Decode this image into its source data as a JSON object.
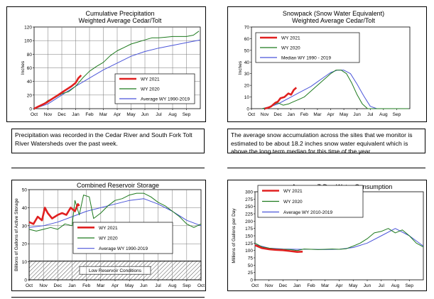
{
  "notes": {
    "precip": "Precipitation was recorded in the Cedar River and South Fork Tolt River Watersheds over the past week.",
    "snow": "The average snow accumulation across the sites that we monitor is estimated to be about 18.2 inches snow water equivalent which is above the long term median for this time of the year."
  },
  "colors": {
    "wy2021": "#e02020",
    "wy2020": "#1e7a1e",
    "avg": "#4b55d9",
    "grid": "#777777"
  },
  "chart_data": [
    {
      "id": "precip",
      "type": "line",
      "title": "Cumulative Precipitation",
      "subtitle": "Weighted Average Cedar/Tolt",
      "ylabel": "Inches",
      "xlabel": "",
      "categories": [
        "Oct",
        "Nov",
        "Dec",
        "Jan",
        "Feb",
        "Mar",
        "Apr",
        "May",
        "Jun",
        "Jul",
        "Aug",
        "Sep"
      ],
      "ylim": [
        0,
        120
      ],
      "yticks": [
        0,
        20,
        40,
        60,
        80,
        100,
        120
      ],
      "grid": true,
      "legend_position": "bottom-right",
      "series": [
        {
          "name": "WY 2021",
          "key": "wy2021",
          "x": [
            0,
            0.3,
            0.6,
            0.9,
            1.2,
            1.5,
            1.8,
            2.1,
            2.4,
            2.7,
            3.0,
            3.2,
            3.4
          ],
          "y": [
            0,
            3,
            6,
            9,
            13,
            17,
            21,
            25,
            29,
            33,
            38,
            45,
            49
          ]
        },
        {
          "name": "WY 2020",
          "key": "wy2020",
          "x": [
            0,
            0.5,
            1,
            1.5,
            2,
            2.5,
            3,
            3.5,
            4,
            4.5,
            5,
            5.5,
            6,
            6.5,
            7,
            7.5,
            8,
            8.5,
            9,
            9.5,
            10,
            10.5,
            11,
            11.5,
            11.9
          ],
          "y": [
            0,
            4,
            12,
            16,
            22,
            25,
            33,
            45,
            55,
            62,
            68,
            78,
            85,
            90,
            95,
            98,
            101,
            104,
            104,
            105,
            106,
            106,
            106,
            108,
            114
          ]
        },
        {
          "name": "Average WY 1990-2019",
          "key": "avg",
          "x": [
            0,
            1,
            2,
            3,
            4,
            5,
            6,
            7,
            8,
            9,
            10,
            11,
            12
          ],
          "y": [
            0,
            7,
            20,
            33,
            45,
            57,
            67,
            77,
            84,
            89,
            93,
            97,
            101
          ]
        }
      ]
    },
    {
      "id": "snow",
      "type": "line",
      "title": "Snowpack (Snow Water Equivalent)",
      "subtitle": "Weighted Average Cedar/Tolt",
      "ylabel": "Inches",
      "xlabel": "",
      "categories": [
        "Oct",
        "Nov",
        "Dec",
        "Jan",
        "Feb",
        "Mar",
        "Apr",
        "May",
        "Jun",
        "Jul",
        "Aug",
        "Sep"
      ],
      "ylim": [
        0,
        70
      ],
      "yticks": [
        0,
        10,
        20,
        30,
        40,
        50,
        60,
        70
      ],
      "grid": false,
      "legend_position": "top-left",
      "series": [
        {
          "name": "WY 2021",
          "key": "wy2021",
          "x": [
            1.0,
            1.3,
            1.5,
            1.8,
            2.0,
            2.2,
            2.5,
            2.8,
            3.0,
            3.2,
            3.4
          ],
          "y": [
            0,
            1,
            2,
            5,
            6,
            9,
            10,
            13,
            12,
            16,
            18
          ]
        },
        {
          "name": "WY 2020",
          "key": "wy2020",
          "x": [
            0.8,
            1.2,
            1.6,
            2.0,
            2.4,
            2.8,
            3.2,
            3.6,
            4,
            4.4,
            4.8,
            5.2,
            5.6,
            6,
            6.4,
            6.8,
            7.2,
            7.6,
            8,
            8.4,
            8.8,
            11.9
          ],
          "y": [
            0,
            1,
            3,
            5,
            3,
            4,
            6,
            8,
            10,
            14,
            18,
            22,
            26,
            30,
            33,
            33,
            30,
            22,
            12,
            4,
            0,
            0
          ]
        },
        {
          "name": "Median WY 1990 - 2019",
          "key": "avg",
          "x": [
            0.8,
            1.5,
            2,
            2.5,
            3,
            3.5,
            4,
            4.5,
            5,
            5.5,
            6,
            6.5,
            7,
            7.5,
            8,
            8.5,
            9,
            9.5,
            11.9
          ],
          "y": [
            0,
            2,
            4,
            7,
            10,
            13,
            16,
            19,
            23,
            27,
            31,
            33,
            33,
            30,
            21,
            11,
            2,
            0,
            0
          ]
        }
      ]
    },
    {
      "id": "reservoir",
      "type": "line",
      "title": "Combined Reservoir Storage",
      "subtitle": "",
      "ylabel": "Billions of Gallons of Active Storage",
      "xlabel": "",
      "categories": [
        "Oct",
        "Nov",
        "Dec",
        "Jan",
        "Feb",
        "Mar",
        "Apr",
        "May",
        "Jun",
        "Jul",
        "Aug",
        "Sep",
        "Oct"
      ],
      "ylim": [
        0,
        50
      ],
      "yticks": [
        0,
        10,
        20,
        30,
        40,
        50
      ],
      "grid": true,
      "legend_position": "center",
      "low_band": {
        "label": "Low Reservoir Conditions",
        "max": 10.5
      },
      "series": [
        {
          "name": "WY 2021",
          "key": "wy2021",
          "x": [
            0,
            0.3,
            0.6,
            0.9,
            1.1,
            1.3,
            1.6,
            2.0,
            2.3,
            2.6,
            2.9,
            3.2,
            3.4,
            3.5
          ],
          "y": [
            32,
            31,
            35,
            33,
            40,
            37,
            34,
            36,
            37,
            36,
            40,
            38,
            42,
            41
          ]
        },
        {
          "name": "WY 2020",
          "key": "wy2020",
          "x": [
            0,
            0.5,
            1,
            1.5,
            2,
            2.5,
            3,
            3.2,
            3.5,
            3.8,
            4.2,
            4.5,
            5,
            5.5,
            6,
            6.5,
            7,
            7.5,
            8,
            8.5,
            9,
            9.5,
            10,
            10.5,
            11,
            11.5,
            12
          ],
          "y": [
            28,
            27,
            28,
            29,
            28,
            31,
            30,
            44,
            36,
            47,
            46,
            34,
            37,
            41,
            44,
            45,
            47,
            48,
            48,
            46,
            43,
            41,
            38,
            35,
            31,
            29,
            31
          ]
        },
        {
          "name": "Average WY 1990-2019",
          "key": "avg",
          "x": [
            0,
            1,
            2,
            3,
            4,
            5,
            6,
            7,
            8,
            9,
            10,
            11,
            12
          ],
          "y": [
            29,
            30,
            32,
            35,
            38,
            40,
            42,
            44,
            45,
            42,
            38,
            33,
            30
          ]
        }
      ]
    },
    {
      "id": "consumption",
      "type": "line",
      "title": "Average 7-Day Water Consumption",
      "subtitle": "",
      "ylabel": "Millions of Gallons per Day",
      "xlabel": "",
      "categories": [
        "Oct",
        "Nov",
        "Dec",
        "Jan",
        "Feb",
        "Mar",
        "Apr",
        "May",
        "Jun",
        "Jul",
        "Aug",
        "Sep"
      ],
      "ylim": [
        0,
        300
      ],
      "yticks": [
        0,
        25,
        50,
        75,
        100,
        125,
        150,
        175,
        200,
        225,
        250,
        275,
        300
      ],
      "grid": false,
      "legend_position": "top-left",
      "series": [
        {
          "name": "WY 2021",
          "key": "wy2021",
          "x": [
            0,
            0.5,
            1,
            1.5,
            2,
            2.5,
            3,
            3.4
          ],
          "y": [
            118,
            108,
            104,
            102,
            101,
            98,
            95,
            96
          ]
        },
        {
          "name": "WY 2020",
          "key": "wy2020",
          "x": [
            0,
            0.5,
            1,
            1.5,
            2,
            2.5,
            3,
            3.5,
            4,
            4.5,
            5,
            5.5,
            6,
            6.5,
            7,
            7.5,
            8,
            8.5,
            9,
            9.5,
            10,
            10.5,
            11,
            11.5,
            12
          ],
          "y": [
            125,
            112,
            108,
            105,
            104,
            103,
            100,
            105,
            104,
            103,
            104,
            105,
            104,
            106,
            115,
            125,
            140,
            160,
            165,
            175,
            160,
            170,
            150,
            125,
            112
          ]
        },
        {
          "name": "Average WY 2010-2019",
          "key": "avg",
          "x": [
            0,
            1,
            2,
            3,
            4,
            5,
            6,
            7,
            8,
            9,
            10,
            11,
            12
          ],
          "y": [
            120,
            108,
            105,
            104,
            104,
            103,
            104,
            110,
            125,
            150,
            175,
            150,
            115
          ]
        }
      ]
    }
  ]
}
